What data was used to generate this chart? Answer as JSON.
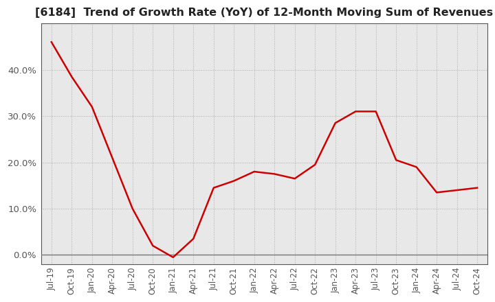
{
  "title": "[6184]  Trend of Growth Rate (YoY) of 12-Month Moving Sum of Revenues",
  "line_color": "#CC0000",
  "background_color": "#FFFFFF",
  "plot_bg_color": "#E8E8E8",
  "grid_color": "#AAAAAA",
  "spine_color": "#555555",
  "x_labels": [
    "Jul-19",
    "Oct-19",
    "Jan-20",
    "Apr-20",
    "Jul-20",
    "Oct-20",
    "Jan-21",
    "Apr-21",
    "Jul-21",
    "Oct-21",
    "Jan-22",
    "Apr-22",
    "Jul-22",
    "Oct-22",
    "Jan-23",
    "Apr-23",
    "Jul-23",
    "Oct-23",
    "Jan-24",
    "Apr-24",
    "Jul-24",
    "Oct-24"
  ],
  "values": [
    0.46,
    0.385,
    0.32,
    0.21,
    0.1,
    0.02,
    -0.005,
    0.035,
    0.145,
    0.16,
    0.18,
    0.175,
    0.165,
    0.195,
    0.285,
    0.31,
    0.31,
    0.205,
    0.19,
    0.135,
    0.14,
    0.145
  ],
  "ylim": [
    -0.02,
    0.5
  ],
  "yticks": [
    0.0,
    0.1,
    0.2,
    0.3,
    0.4
  ],
  "title_fontsize": 11.5,
  "tick_label_color": "#555555",
  "tick_label_fontsize": 8.5,
  "ytick_label_fontsize": 9.5
}
